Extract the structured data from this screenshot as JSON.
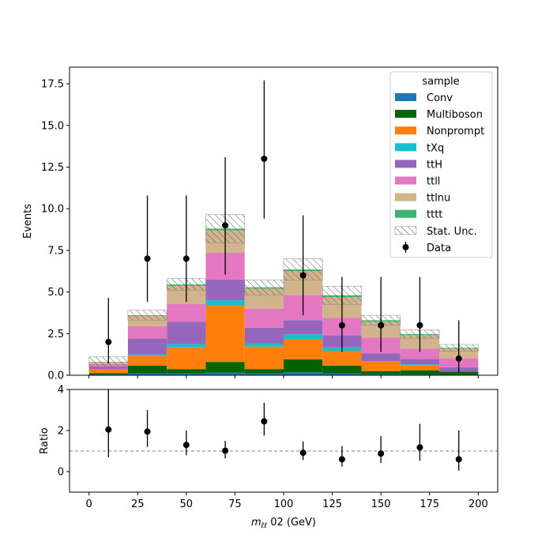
{
  "chart_data": [
    {
      "type": "bar",
      "stacked": true,
      "ylabel": "Events",
      "xlim": [
        -10,
        210
      ],
      "ylim": [
        0,
        18.5
      ],
      "xticks": [
        0,
        25,
        50,
        75,
        100,
        125,
        150,
        175,
        200
      ],
      "yticks": [
        0.0,
        2.5,
        5.0,
        7.5,
        10.0,
        12.5,
        15.0,
        17.5
      ],
      "ytick_labels": [
        "0.0",
        "2.5",
        "5.0",
        "7.5",
        "10.0",
        "12.5",
        "15.0",
        "17.5"
      ],
      "bin_edges": [
        0,
        20,
        40,
        60,
        80,
        100,
        120,
        140,
        160,
        180,
        200
      ],
      "series": [
        {
          "name": "Conv",
          "color": "#1f77b4",
          "values": [
            0.05,
            0.12,
            0.12,
            0.15,
            0.12,
            0.18,
            0.12,
            0.06,
            0.05,
            0.03
          ]
        },
        {
          "name": "Multiboson",
          "color": "#006400",
          "values": [
            0.08,
            0.45,
            0.25,
            0.65,
            0.25,
            0.78,
            0.45,
            0.18,
            0.25,
            0.18
          ]
        },
        {
          "name": "Nonprompt",
          "color": "#ff7f0e",
          "values": [
            0.25,
            0.6,
            1.3,
            3.4,
            1.35,
            1.2,
            0.9,
            0.6,
            0.3,
            0.0
          ]
        },
        {
          "name": "tXq",
          "color": "#17becf",
          "values": [
            0.0,
            0.08,
            0.2,
            0.3,
            0.18,
            0.3,
            0.2,
            0.0,
            0.05,
            0.0
          ]
        },
        {
          "name": "ttH",
          "color": "#9467bd",
          "values": [
            0.15,
            0.95,
            1.35,
            1.25,
            0.95,
            0.85,
            0.73,
            0.48,
            0.32,
            0.27
          ]
        },
        {
          "name": "ttll",
          "color": "#e377c2",
          "values": [
            0.15,
            0.75,
            1.05,
            1.6,
            1.15,
            1.5,
            1.05,
            0.95,
            0.63,
            0.55
          ]
        },
        {
          "name": "ttlnu",
          "color": "#d2b48c",
          "values": [
            0.1,
            0.6,
            1.1,
            1.35,
            1.2,
            1.45,
            1.25,
            0.95,
            0.82,
            0.57
          ]
        },
        {
          "name": "tttt",
          "color": "#3cb371",
          "values": [
            0.02,
            0.05,
            0.08,
            0.1,
            0.08,
            0.09,
            0.1,
            0.08,
            0.05,
            0.05
          ]
        }
      ],
      "stat_unc": {
        "name": "Stat. Unc.",
        "half_widths": [
          0.3,
          0.3,
          0.35,
          0.85,
          0.45,
          0.65,
          0.55,
          0.3,
          0.25,
          0.2
        ]
      },
      "data": {
        "name": "Data",
        "x": [
          10,
          30,
          50,
          70,
          90,
          110,
          130,
          150,
          170,
          190
        ],
        "y": [
          2,
          7,
          7,
          9,
          13,
          6,
          3,
          3,
          3,
          1
        ],
        "err_low": [
          1.3,
          2.6,
          2.6,
          2.95,
          3.6,
          2.4,
          1.6,
          1.6,
          1.6,
          0.85
        ],
        "err_high": [
          2.65,
          3.8,
          3.8,
          4.1,
          4.7,
          3.6,
          2.9,
          2.9,
          2.9,
          2.3
        ]
      },
      "legend": {
        "title": "sample",
        "position": "top-right"
      }
    },
    {
      "type": "scatter",
      "ylabel": "Ratio",
      "xlabel": "m_ℓℓ 02 (GeV)",
      "xlim": [
        -10,
        210
      ],
      "ylim": [
        -1,
        4
      ],
      "xticks": [
        0,
        25,
        50,
        75,
        100,
        125,
        150,
        175,
        200
      ],
      "xtick_labels": [
        "0",
        "25",
        "50",
        "75",
        "100",
        "125",
        "150",
        "175",
        "200"
      ],
      "yticks": [
        0,
        2,
        4
      ],
      "ytick_labels": [
        "0",
        "2",
        "4"
      ],
      "reference_line": 1,
      "x": [
        10,
        30,
        50,
        70,
        90,
        110,
        130,
        150,
        170,
        190
      ],
      "y": [
        2.05,
        1.95,
        1.3,
        1.02,
        2.45,
        0.92,
        0.6,
        0.88,
        1.18,
        0.6
      ],
      "err_low": [
        1.35,
        0.75,
        0.5,
        0.38,
        0.7,
        0.35,
        0.35,
        0.45,
        0.65,
        0.55
      ],
      "err_high": [
        2.0,
        1.05,
        0.7,
        0.48,
        0.9,
        0.55,
        0.65,
        0.85,
        1.15,
        1.4
      ]
    }
  ]
}
